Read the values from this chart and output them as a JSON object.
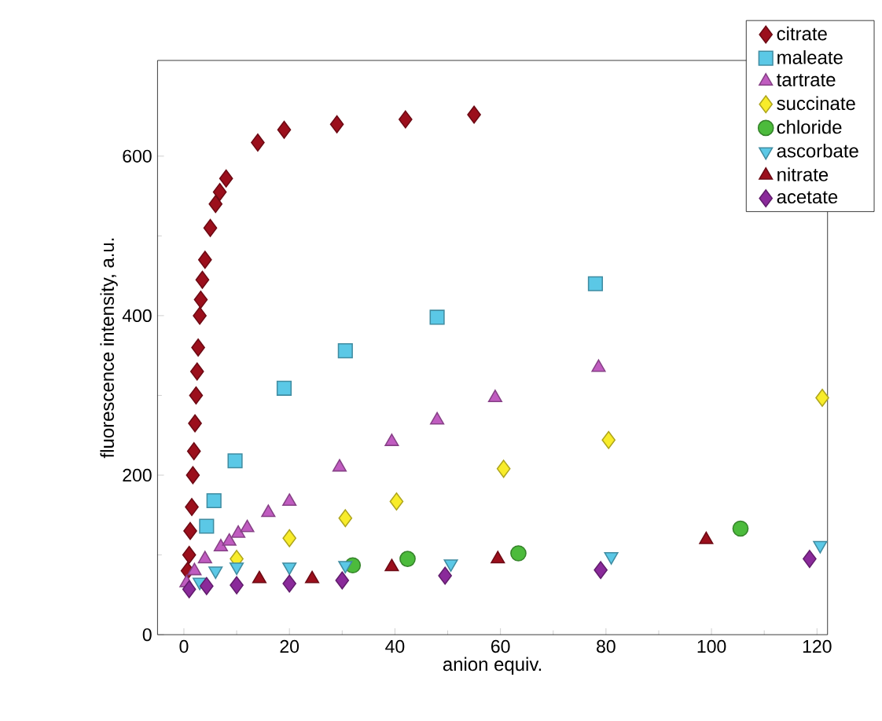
{
  "chart_data": {
    "type": "scatter",
    "xlabel": "anion equiv.",
    "ylabel": "fluorescence intensity, a.u.",
    "xlim": [
      -5,
      122
    ],
    "ylim": [
      0,
      720
    ],
    "xticks": [
      0,
      20,
      40,
      60,
      80,
      100,
      120
    ],
    "yticks": [
      0,
      200,
      400,
      600
    ],
    "grid": false,
    "legend": "top right",
    "series": [
      {
        "name": "citrate",
        "color": "#9b0f1c",
        "marker": "diamond",
        "x": [
          0.7,
          1,
          1.2,
          1.5,
          1.7,
          1.9,
          2.1,
          2.3,
          2.5,
          2.7,
          3,
          3.2,
          3.5,
          4,
          5,
          6,
          6.8,
          8,
          14,
          19,
          29,
          42,
          55
        ],
        "values": [
          80,
          100,
          130,
          160,
          200,
          230,
          265,
          300,
          330,
          360,
          400,
          420,
          445,
          470,
          510,
          540,
          555,
          572,
          617,
          633,
          640,
          646,
          652
        ]
      },
      {
        "name": "maleate",
        "color": "#5bc8e6",
        "marker": "square",
        "x": [
          4.3,
          5.7,
          9.7,
          19,
          30.6,
          48,
          78
        ],
        "values": [
          136,
          168,
          218,
          309,
          356,
          398,
          440
        ]
      },
      {
        "name": "tartrate",
        "color": "#c05cc0",
        "marker": "triangle",
        "x": [
          0.5,
          2,
          4,
          7,
          8.6,
          10.3,
          12,
          16,
          20,
          29.5,
          39.4,
          48,
          59,
          78.6
        ],
        "values": [
          65,
          80,
          95,
          110,
          117,
          127,
          134,
          153,
          167,
          210,
          242,
          269,
          297,
          335
        ]
      },
      {
        "name": "succinate",
        "color": "#f8ec2a",
        "marker": "diamond",
        "x": [
          10,
          20,
          30.6,
          40.3,
          60.6,
          80.5,
          121
        ],
        "values": [
          95,
          121,
          146,
          167,
          208,
          244,
          297
        ]
      },
      {
        "name": "chloride",
        "color": "#4cbb3c",
        "marker": "circle",
        "x": [
          32,
          42.4,
          63.4,
          105.5
        ],
        "values": [
          87,
          95,
          102,
          133
        ]
      },
      {
        "name": "ascorbate",
        "color": "#5bc8e6",
        "marker": "triangle-down",
        "x": [
          3,
          6,
          10,
          20,
          30.6,
          50.6,
          81,
          120.6
        ],
        "values": [
          66,
          80,
          85,
          85,
          87,
          89,
          98,
          112
        ]
      },
      {
        "name": "nitrate",
        "color": "#9b0f1c",
        "marker": "triangle",
        "x": [
          14.3,
          24.3,
          39.4,
          59.5,
          99
        ],
        "values": [
          70,
          70,
          85,
          95,
          119
        ]
      },
      {
        "name": "acetate",
        "color": "#8a2a9a",
        "marker": "diamond",
        "x": [
          1,
          4.3,
          10,
          20,
          30,
          49.5,
          79,
          118.6
        ],
        "values": [
          57,
          61,
          62,
          64,
          68,
          74,
          81,
          95
        ]
      }
    ]
  }
}
